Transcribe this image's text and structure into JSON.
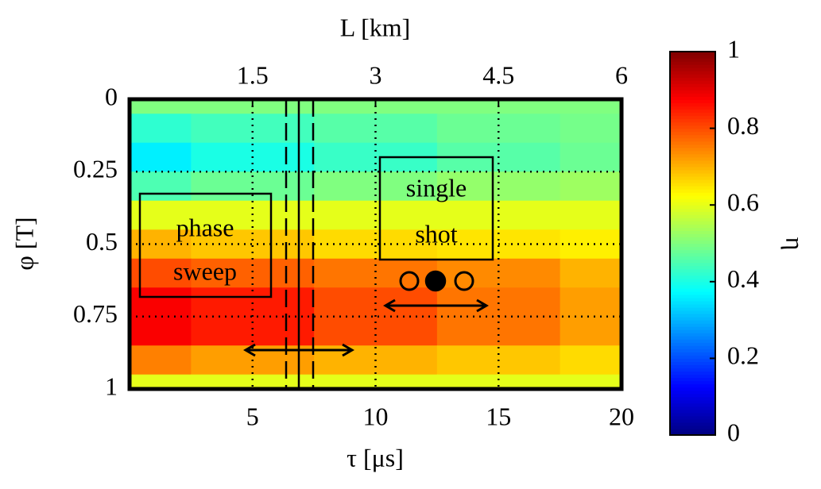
{
  "chart_data": {
    "type": "heatmap",
    "colormap": "jet",
    "xlabel": "τ [μs]",
    "ylabel": "φ [T]",
    "x2label": "L [km]",
    "colorbar_label": "η",
    "xlim": [
      0,
      20
    ],
    "xticks": [
      5,
      10,
      15,
      20
    ],
    "x2lim": [
      0,
      6
    ],
    "x2ticks": [
      1.5,
      3,
      4.5,
      6
    ],
    "ylim": [
      1,
      0
    ],
    "yticks": [
      0,
      0.25,
      0.5,
      0.75,
      1
    ],
    "clim": [
      0,
      1
    ],
    "cticks": [
      0,
      0.2,
      0.4,
      0.6,
      0.8,
      1
    ],
    "grid": true,
    "x": [
      0,
      5,
      10,
      15,
      20
    ],
    "y": [
      0,
      0.1,
      0.2,
      0.3,
      0.4,
      0.5,
      0.6,
      0.7,
      0.8,
      0.9,
      1
    ],
    "z": [
      [
        0.5,
        0.5,
        0.5,
        0.5,
        0.5
      ],
      [
        0.42,
        0.44,
        0.46,
        0.48,
        0.49
      ],
      [
        0.36,
        0.4,
        0.43,
        0.46,
        0.48
      ],
      [
        0.45,
        0.48,
        0.5,
        0.52,
        0.53
      ],
      [
        0.6,
        0.6,
        0.6,
        0.6,
        0.6
      ],
      [
        0.7,
        0.68,
        0.66,
        0.65,
        0.64
      ],
      [
        0.8,
        0.78,
        0.76,
        0.74,
        0.7
      ],
      [
        0.88,
        0.85,
        0.8,
        0.76,
        0.72
      ],
      [
        0.88,
        0.85,
        0.8,
        0.76,
        0.72
      ],
      [
        0.75,
        0.72,
        0.7,
        0.68,
        0.66
      ],
      [
        0.6,
        0.6,
        0.6,
        0.6,
        0.6
      ]
    ],
    "annotations": [
      {
        "lines": [
          "phase",
          "sweep"
        ]
      },
      {
        "lines": [
          "single",
          "shot"
        ]
      }
    ]
  }
}
